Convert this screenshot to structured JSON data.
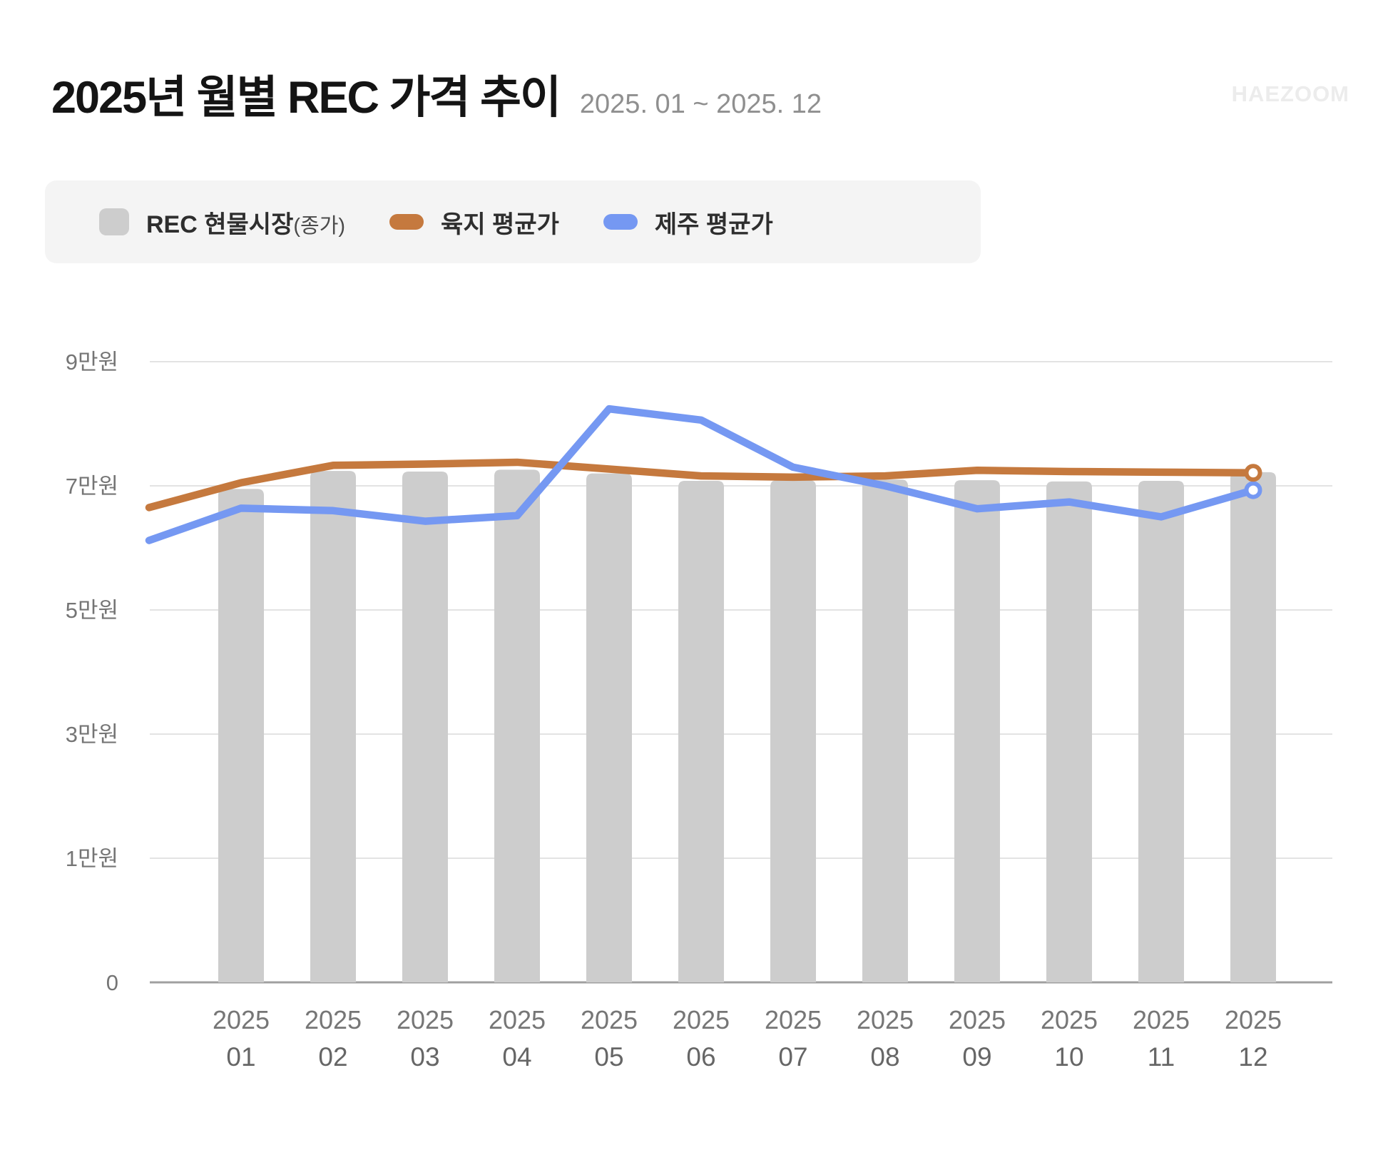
{
  "header": {
    "title": "2025년 월별 REC 가격 추이",
    "subtitle": "2025. 01 ~ 2025. 12",
    "watermark": "HAEZOOM"
  },
  "legend": {
    "position": "top-left",
    "items": [
      {
        "label": "REC 현물시장",
        "suffix": "(종가)",
        "color": "#cdcdcd",
        "shape": "square"
      },
      {
        "label": "육지 평균가",
        "suffix": "",
        "color": "#c5793e",
        "shape": "line"
      },
      {
        "label": "제주 평균가",
        "suffix": "",
        "color": "#7598f2",
        "shape": "line"
      }
    ]
  },
  "chart_data": {
    "type": "bar+line",
    "title": "2025년 월별 REC 가격 추이",
    "period": "2025. 01 ~ 2025. 12",
    "unit": "만원 (10,000 KRW)",
    "grid": "horizontal gridlines only",
    "legend_position": "top-left",
    "y_axis": {
      "tick_values": [
        0,
        1,
        3,
        5,
        7,
        9
      ],
      "tick_labels": [
        "0",
        "1만원",
        "3만원",
        "5만원",
        "7만원",
        "9만원"
      ],
      "note": "ticks are rendered equally spaced (non-linear scale below 1만원)"
    },
    "x_labels": [
      {
        "year": "2025",
        "month": "01"
      },
      {
        "year": "2025",
        "month": "02"
      },
      {
        "year": "2025",
        "month": "03"
      },
      {
        "year": "2025",
        "month": "04"
      },
      {
        "year": "2025",
        "month": "05"
      },
      {
        "year": "2025",
        "month": "06"
      },
      {
        "year": "2025",
        "month": "07"
      },
      {
        "year": "2025",
        "month": "08"
      },
      {
        "year": "2025",
        "month": "09"
      },
      {
        "year": "2025",
        "month": "10"
      },
      {
        "year": "2025",
        "month": "11"
      },
      {
        "year": "2025",
        "month": "12"
      }
    ],
    "series": [
      {
        "name": "REC 현물시장(종가)",
        "type": "bar",
        "color": "#cdcdcd",
        "values": [
          6.95,
          7.24,
          7.23,
          7.26,
          7.2,
          7.08,
          7.09,
          7.1,
          7.09,
          7.07,
          7.08,
          7.22
        ]
      },
      {
        "name": "육지 평균가",
        "type": "line",
        "color": "#c5793e",
        "end_marker": "ring",
        "edge_lead_in_value": 6.65,
        "values": [
          7.05,
          7.33,
          7.35,
          7.38,
          7.27,
          7.16,
          7.14,
          7.16,
          7.25,
          7.23,
          7.22,
          7.21
        ]
      },
      {
        "name": "제주 평균가",
        "type": "line",
        "color": "#7598f2",
        "end_marker": "ring",
        "edge_lead_in_value": 6.12,
        "values": [
          6.64,
          6.6,
          6.43,
          6.52,
          8.24,
          8.06,
          7.3,
          7.0,
          6.63,
          6.74,
          6.5,
          6.93
        ]
      }
    ]
  }
}
